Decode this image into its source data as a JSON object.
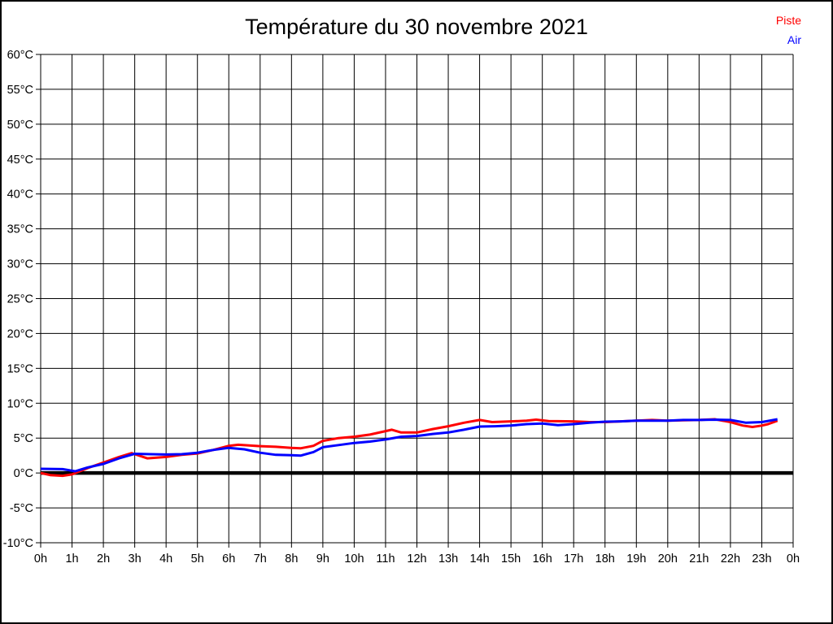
{
  "title": "Température du 30 novembre 2021",
  "legend": {
    "items": [
      {
        "label": "Piste",
        "color": "#ff0000"
      },
      {
        "label": "Air",
        "color": "#0000ff"
      }
    ]
  },
  "colors": {
    "background": "#ffffff",
    "grid": "#000000",
    "zero_line": "#000000",
    "frame": "#000000",
    "piste": "#ff0000",
    "air": "#0000ff"
  },
  "chart_data": {
    "type": "line",
    "title": "Température du 30 novembre 2021",
    "xlabel": "",
    "ylabel": "",
    "x_unit": "h",
    "y_unit": "°C",
    "xlim": [
      0,
      24
    ],
    "ylim": [
      -10,
      60
    ],
    "y_tick_step": 5,
    "grid": true,
    "zero_line_value": 0,
    "legend_position": "top-right",
    "y_tick_labels": [
      "60°C",
      "55°C",
      "50°C",
      "45°C",
      "40°C",
      "35°C",
      "30°C",
      "25°C",
      "20°C",
      "15°C",
      "10°C",
      "5°C",
      "0°C",
      "-5°C",
      "-10°C"
    ],
    "x_tick_labels": [
      "0h",
      "1h",
      "2h",
      "3h",
      "4h",
      "5h",
      "6h",
      "7h",
      "8h",
      "9h",
      "10h",
      "11h",
      "12h",
      "13h",
      "14h",
      "15h",
      "16h",
      "17h",
      "18h",
      "19h",
      "20h",
      "21h",
      "22h",
      "23h",
      "0h"
    ],
    "series": [
      {
        "name": "Piste",
        "color": "#ff0000",
        "points": [
          [
            0,
            0.0
          ],
          [
            0.3,
            -0.3
          ],
          [
            0.7,
            -0.4
          ],
          [
            1,
            -0.2
          ],
          [
            1.5,
            0.7
          ],
          [
            2,
            1.5
          ],
          [
            2.5,
            2.3
          ],
          [
            2.9,
            2.85
          ],
          [
            3.4,
            2.1
          ],
          [
            4,
            2.3
          ],
          [
            4.5,
            2.6
          ],
          [
            5,
            2.8
          ],
          [
            5.5,
            3.3
          ],
          [
            6,
            3.9
          ],
          [
            6.3,
            4.05
          ],
          [
            7,
            3.85
          ],
          [
            7.5,
            3.75
          ],
          [
            8,
            3.6
          ],
          [
            8.3,
            3.55
          ],
          [
            8.7,
            3.9
          ],
          [
            9,
            4.6
          ],
          [
            9.5,
            5.0
          ],
          [
            10,
            5.2
          ],
          [
            10.5,
            5.5
          ],
          [
            11,
            6.0
          ],
          [
            11.2,
            6.2
          ],
          [
            11.5,
            5.8
          ],
          [
            12,
            5.8
          ],
          [
            12.5,
            6.3
          ],
          [
            13,
            6.7
          ],
          [
            13.5,
            7.2
          ],
          [
            14,
            7.6
          ],
          [
            14.4,
            7.3
          ],
          [
            15,
            7.4
          ],
          [
            15.5,
            7.5
          ],
          [
            15.8,
            7.65
          ],
          [
            16.2,
            7.45
          ],
          [
            17,
            7.4
          ],
          [
            17.5,
            7.3
          ],
          [
            18,
            7.3
          ],
          [
            18.5,
            7.4
          ],
          [
            19,
            7.5
          ],
          [
            19.5,
            7.6
          ],
          [
            20,
            7.5
          ],
          [
            20.5,
            7.55
          ],
          [
            21,
            7.6
          ],
          [
            21.5,
            7.7
          ],
          [
            22,
            7.3
          ],
          [
            22.4,
            6.8
          ],
          [
            22.7,
            6.6
          ],
          [
            23,
            6.8
          ],
          [
            23.2,
            7.0
          ],
          [
            23.5,
            7.5
          ]
        ]
      },
      {
        "name": "Air",
        "color": "#0000ff",
        "points": [
          [
            0,
            0.6
          ],
          [
            0.7,
            0.55
          ],
          [
            1.1,
            0.25
          ],
          [
            1.5,
            0.8
          ],
          [
            2,
            1.3
          ],
          [
            2.5,
            2.1
          ],
          [
            3,
            2.75
          ],
          [
            3.5,
            2.7
          ],
          [
            4,
            2.65
          ],
          [
            4.5,
            2.7
          ],
          [
            5,
            2.9
          ],
          [
            5.5,
            3.3
          ],
          [
            6,
            3.6
          ],
          [
            6.5,
            3.4
          ],
          [
            7,
            2.9
          ],
          [
            7.5,
            2.6
          ],
          [
            8,
            2.55
          ],
          [
            8.3,
            2.5
          ],
          [
            8.7,
            3.0
          ],
          [
            9,
            3.7
          ],
          [
            9.5,
            4.0
          ],
          [
            10,
            4.3
          ],
          [
            10.5,
            4.5
          ],
          [
            11,
            4.8
          ],
          [
            11.5,
            5.2
          ],
          [
            12,
            5.3
          ],
          [
            12.5,
            5.6
          ],
          [
            13,
            5.8
          ],
          [
            13.5,
            6.2
          ],
          [
            14,
            6.65
          ],
          [
            14.5,
            6.7
          ],
          [
            15,
            6.8
          ],
          [
            15.5,
            7.0
          ],
          [
            16,
            7.1
          ],
          [
            16.5,
            6.85
          ],
          [
            17,
            7.0
          ],
          [
            17.5,
            7.2
          ],
          [
            18,
            7.35
          ],
          [
            18.5,
            7.4
          ],
          [
            19,
            7.5
          ],
          [
            19.5,
            7.5
          ],
          [
            20,
            7.5
          ],
          [
            20.5,
            7.6
          ],
          [
            21,
            7.6
          ],
          [
            21.5,
            7.65
          ],
          [
            22,
            7.6
          ],
          [
            22.5,
            7.2
          ],
          [
            23,
            7.3
          ],
          [
            23.5,
            7.7
          ]
        ]
      }
    ]
  }
}
